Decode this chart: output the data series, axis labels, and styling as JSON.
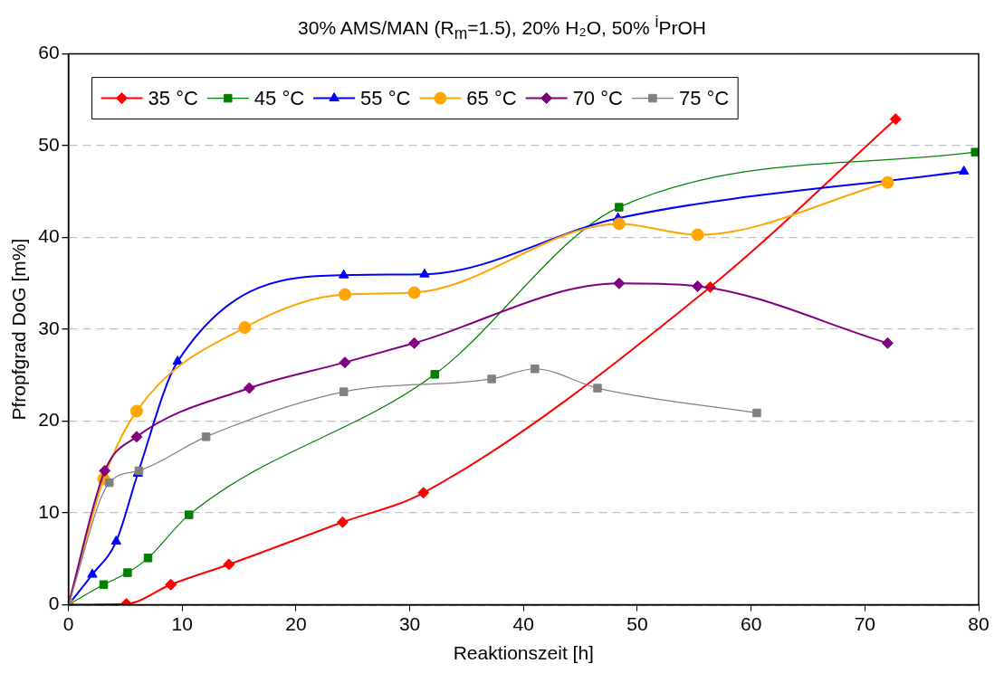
{
  "chart_data": {
    "type": "line",
    "title": "30% AMS/MAN (R$_{m}$=1.5), 20% H₂O, 50% $^{i}$PrOH",
    "xlabel": "Reaktionszeit [h]",
    "ylabel": "Pfropfgrad DoG [m%]",
    "xlim": [
      0,
      80
    ],
    "xticks": [
      0,
      10,
      20,
      30,
      40,
      50,
      60,
      70,
      80
    ],
    "ylim": [
      0,
      60
    ],
    "yticks": [
      0,
      10,
      20,
      30,
      40,
      50,
      60
    ],
    "grid": "y",
    "legend": "top left",
    "series": [
      {
        "name": "35 °C",
        "color": "#ff0000",
        "marker": "diamond",
        "x": [
          0,
          5.1,
          9.0,
          14.1,
          24.1,
          31.2,
          56.4,
          72.7
        ],
        "values": [
          0,
          0.1,
          2.2,
          4.4,
          9.0,
          12.2,
          34.6,
          52.9
        ]
      },
      {
        "name": "45 °C",
        "color": "#008000",
        "marker": "square",
        "x": [
          0,
          3.1,
          5.2,
          7.0,
          10.6,
          32.2,
          48.4,
          79.7
        ],
        "values": [
          0,
          2.2,
          3.5,
          5.1,
          9.8,
          25.1,
          43.3,
          49.3
        ]
      },
      {
        "name": "55 °C",
        "color": "#0000ff",
        "marker": "triangle",
        "x": [
          0,
          2.1,
          4.2,
          6.1,
          9.6,
          24.2,
          31.3,
          48.3,
          78.7
        ],
        "values": [
          0,
          3.3,
          6.9,
          14.3,
          26.5,
          35.9,
          36.0,
          42.1,
          47.2
        ]
      },
      {
        "name": "65 °C",
        "color": "#ffa500",
        "marker": "circle",
        "x": [
          0,
          3.1,
          6.0,
          15.5,
          24.3,
          30.4,
          48.4,
          55.3,
          72.0
        ],
        "values": [
          0,
          13.7,
          21.1,
          30.2,
          33.8,
          34.0,
          41.5,
          40.3,
          46.0
        ]
      },
      {
        "name": "70 °C",
        "color": "#800080",
        "marker": "diamond",
        "x": [
          0,
          3.2,
          6.0,
          15.9,
          24.3,
          30.4,
          48.4,
          55.3,
          72.0
        ],
        "values": [
          0,
          14.6,
          18.3,
          23.6,
          26.4,
          28.5,
          35.0,
          34.7,
          28.5
        ]
      },
      {
        "name": "75 °C",
        "color": "#808080",
        "marker": "square",
        "x": [
          0,
          3.6,
          6.2,
          12.1,
          24.2,
          37.2,
          41.0,
          46.5,
          60.5
        ],
        "values": [
          0,
          13.3,
          14.6,
          18.3,
          23.2,
          24.6,
          25.7,
          23.6,
          20.9
        ]
      }
    ]
  }
}
